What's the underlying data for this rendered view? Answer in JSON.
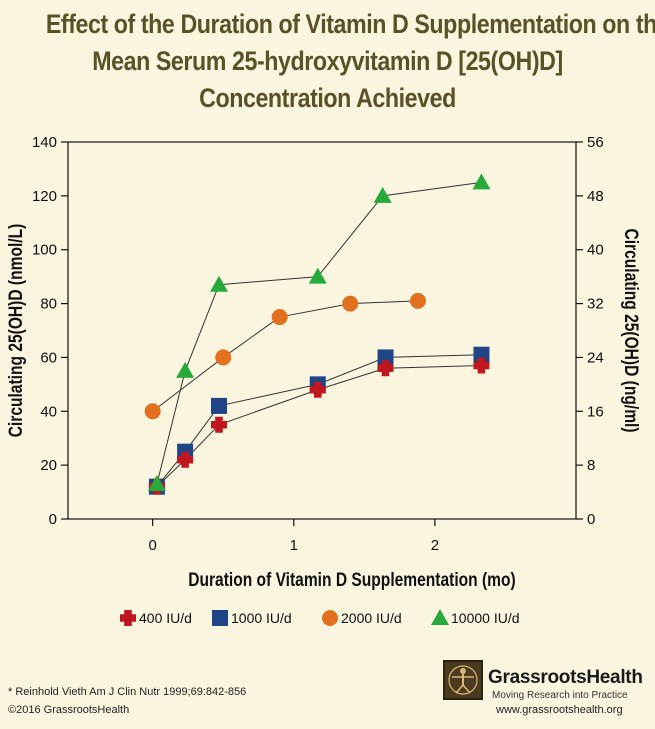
{
  "title": {
    "line1": "Effect of the Duration of Vitamin D Supplementation on the",
    "line2": "Mean Serum 25-hydroxyvitamin D [25(OH)D]",
    "line3": "Concentration Achieved"
  },
  "chart_data": {
    "type": "line",
    "xlabel": "Duration of Vitamin D Supplementation (mo)",
    "ylabel": "Circulating 25(OH)D (nmol/L)",
    "y2label": "Circulating 25(OH)D (ng/ml)",
    "xlim": [
      -0.6,
      3.0
    ],
    "ylim": [
      0,
      140
    ],
    "y2lim": [
      0,
      56
    ],
    "x_ticks": [
      0,
      1,
      2
    ],
    "y_ticks": [
      0,
      20,
      40,
      60,
      80,
      100,
      120,
      140
    ],
    "y2_ticks": [
      0,
      8,
      16,
      24,
      32,
      40,
      48,
      56
    ],
    "legend_position": "bottom",
    "series": [
      {
        "name": "400 IU/d",
        "marker": "cross",
        "color": "#c0161e",
        "points": [
          [
            0.03,
            12
          ],
          [
            0.23,
            22
          ],
          [
            0.47,
            35
          ],
          [
            1.17,
            48
          ],
          [
            1.65,
            56
          ],
          [
            2.33,
            57
          ]
        ]
      },
      {
        "name": "1000 IU/d",
        "marker": "square",
        "color": "#1f4586",
        "points": [
          [
            0.03,
            12
          ],
          [
            0.23,
            25
          ],
          [
            0.47,
            42
          ],
          [
            1.17,
            50
          ],
          [
            1.65,
            60
          ],
          [
            2.33,
            61
          ]
        ]
      },
      {
        "name": "2000 IU/d",
        "marker": "circle",
        "color": "#e1701f",
        "points": [
          [
            0.0,
            40
          ],
          [
            0.5,
            60
          ],
          [
            0.9,
            75
          ],
          [
            1.4,
            80
          ],
          [
            1.88,
            81
          ]
        ]
      },
      {
        "name": "10000 IU/d",
        "marker": "triangle",
        "color": "#27a93c",
        "points": [
          [
            0.03,
            13
          ],
          [
            0.23,
            55
          ],
          [
            0.47,
            87
          ],
          [
            1.17,
            90
          ],
          [
            1.63,
            120
          ],
          [
            2.33,
            125
          ]
        ]
      }
    ]
  },
  "footer": {
    "citation": "* Reinhold Vieth Am J Clin Nutr 1999;69:842-856",
    "copyright": "©2016 GrassrootsHealth",
    "brand": "GrassrootsHealth",
    "tagline": "Moving Research into Practice",
    "website": "www.grassrootshealth.org"
  }
}
